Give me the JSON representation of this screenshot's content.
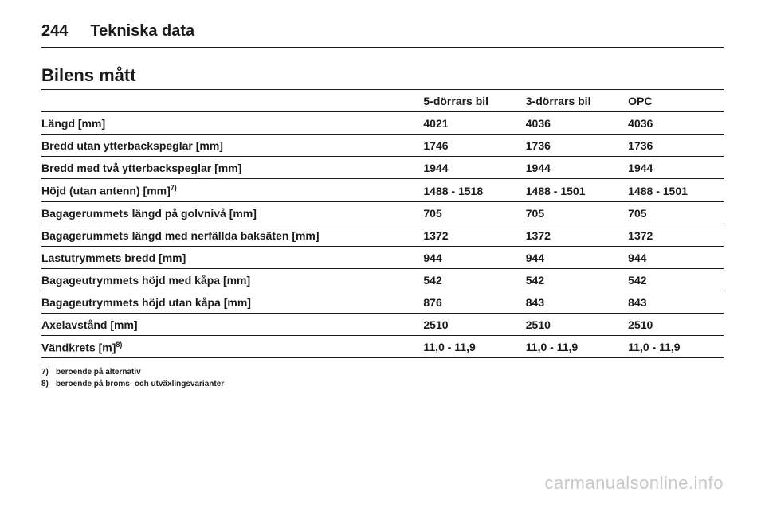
{
  "page_number": "244",
  "section_title": "Tekniska data",
  "table_title": "Bilens mått",
  "columns": [
    "",
    "5-dörrars bil",
    "3-dörrars bil",
    "OPC"
  ],
  "rows": [
    {
      "label": "Längd [mm]",
      "a": "4021",
      "b": "4036",
      "c": "4036"
    },
    {
      "label": "Bredd utan ytterbackspeglar [mm]",
      "a": "1746",
      "b": "1736",
      "c": "1736"
    },
    {
      "label": "Bredd med två ytterbackspeglar [mm]",
      "a": "1944",
      "b": "1944",
      "c": "1944"
    },
    {
      "label_html": "Höjd (utan antenn) [mm]<sup>7)</sup>",
      "a": "1488 - 1518",
      "b": "1488 - 1501",
      "c": "1488 - 1501"
    },
    {
      "label": "Bagagerummets längd på golvnivå [mm]",
      "a": "705",
      "b": "705",
      "c": "705"
    },
    {
      "label": "Bagagerummets längd med nerfällda baksäten [mm]",
      "a": "1372",
      "b": "1372",
      "c": "1372"
    },
    {
      "label": "Lastutrymmets bredd [mm]",
      "a": "944",
      "b": "944",
      "c": "944"
    },
    {
      "label": "Bagageutrymmets höjd med kåpa [mm]",
      "a": "542",
      "b": "542",
      "c": "542"
    },
    {
      "label": "Bagageutrymmets höjd utan kåpa [mm]",
      "a": "876",
      "b": "843",
      "c": "843"
    },
    {
      "label": "Axelavstånd [mm]",
      "a": "2510",
      "b": "2510",
      "c": "2510"
    },
    {
      "label_html": "Vändkrets [m]<sup>8)</sup>",
      "a": "11,0 - 11,9",
      "b": "11,0 - 11,9",
      "c": "11,0 - 11,9"
    }
  ],
  "footnotes": [
    {
      "mark": "7)",
      "text": "beroende på alternativ"
    },
    {
      "mark": "8)",
      "text": "beroende på broms- och utväxlingsvarianter"
    }
  ],
  "watermark": "carmanualsonline.info"
}
